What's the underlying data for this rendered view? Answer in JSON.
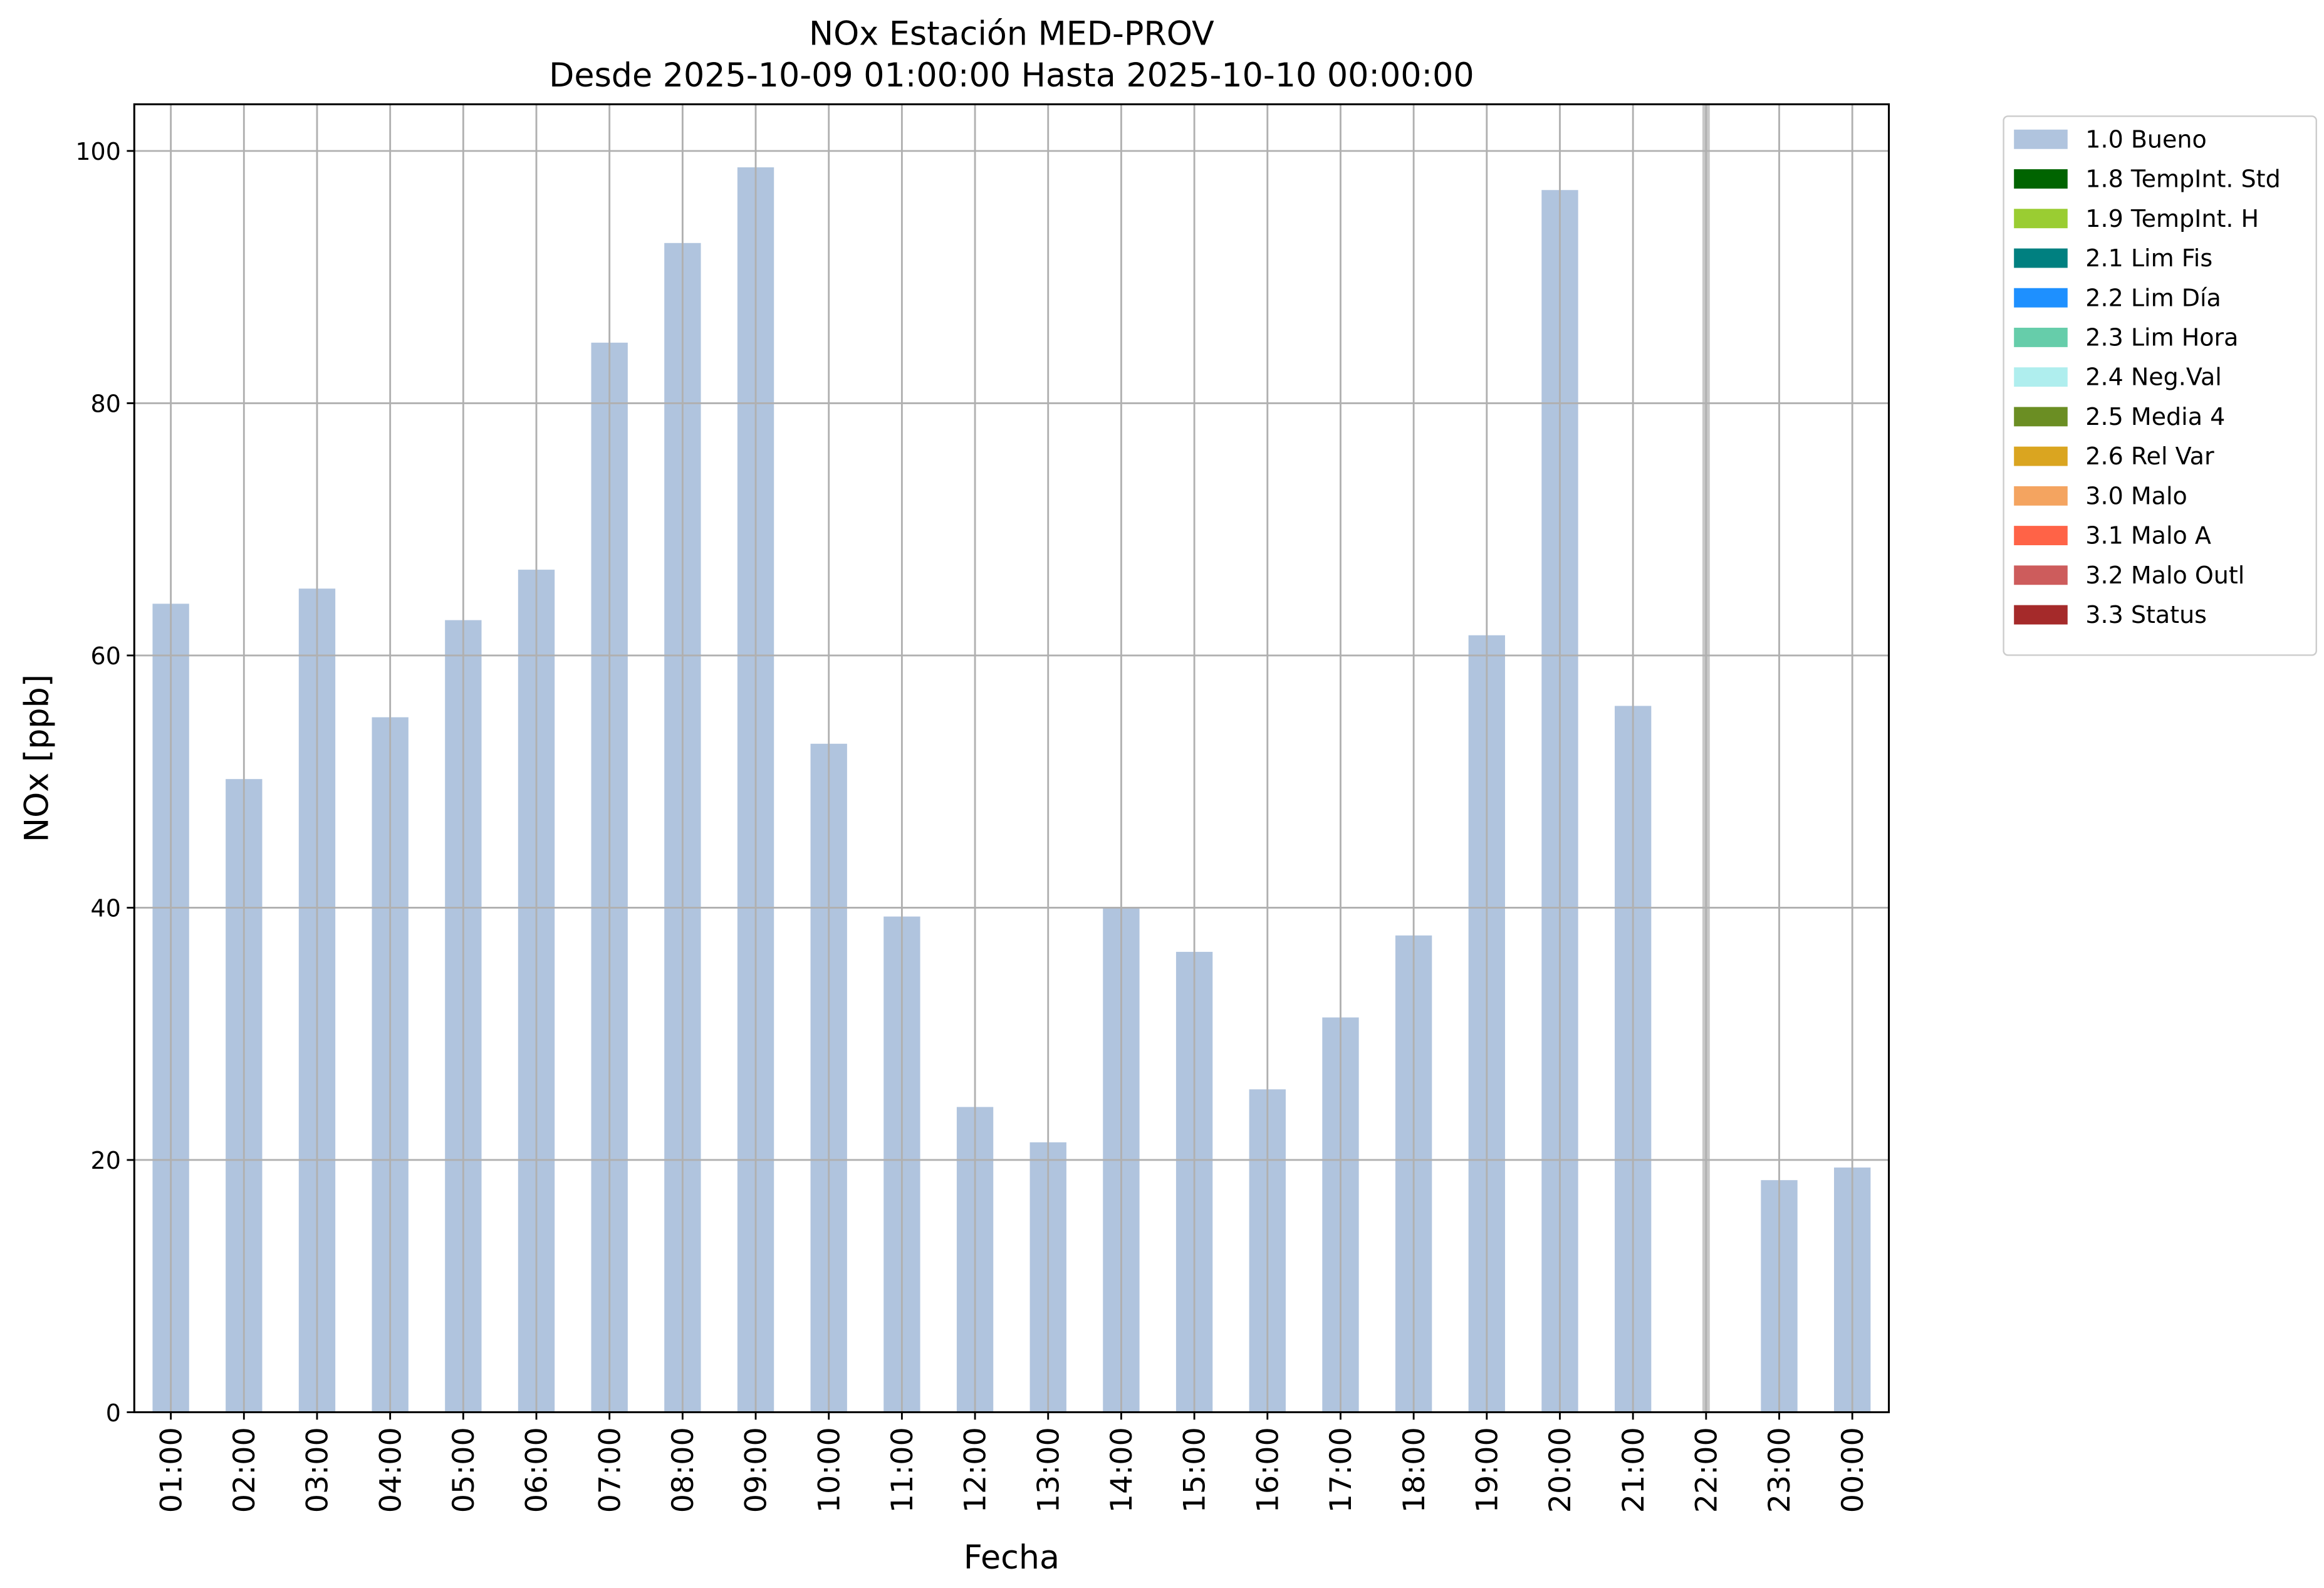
{
  "chart_data": {
    "type": "bar",
    "title": "NOx Estación MED-PROV",
    "subtitle": "Desde 2025-10-09 01:00:00 Hasta 2025-10-10 00:00:00",
    "x_label": "Fecha",
    "y_label": "NOx [ppb]",
    "categories": [
      "01:00",
      "02:00",
      "03:00",
      "04:00",
      "05:00",
      "06:00",
      "07:00",
      "08:00",
      "09:00",
      "10:00",
      "11:00",
      "12:00",
      "13:00",
      "14:00",
      "15:00",
      "16:00",
      "17:00",
      "18:00",
      "19:00",
      "20:00",
      "21:00",
      "22:00",
      "23:00",
      "00:00"
    ],
    "series": [
      {
        "name": "1.0 Bueno",
        "color": "#b0c4de",
        "values": [
          64.1,
          50.2,
          65.3,
          55.1,
          62.8,
          66.8,
          84.8,
          92.7,
          98.7,
          53.0,
          39.3,
          24.2,
          21.4,
          40.0,
          36.5,
          25.6,
          31.3,
          37.8,
          61.6,
          96.9,
          56.0,
          null,
          18.4,
          19.4
        ]
      },
      {
        "name": "1.8 TempInt. Std",
        "color": "#006400",
        "values": [
          null,
          null,
          null,
          null,
          null,
          null,
          null,
          null,
          null,
          null,
          null,
          null,
          null,
          null,
          null,
          null,
          null,
          null,
          null,
          null,
          null,
          null,
          null,
          null
        ]
      },
      {
        "name": "1.9 TempInt. H",
        "color": "#9acd32",
        "values": [
          null,
          null,
          null,
          null,
          null,
          null,
          null,
          null,
          null,
          null,
          null,
          null,
          null,
          null,
          null,
          null,
          null,
          null,
          null,
          null,
          null,
          null,
          null,
          null
        ]
      },
      {
        "name": "2.1 Lim Fis",
        "color": "#008080",
        "values": [
          null,
          null,
          null,
          null,
          null,
          null,
          null,
          null,
          null,
          null,
          null,
          null,
          null,
          null,
          null,
          null,
          null,
          null,
          null,
          null,
          null,
          null,
          null,
          null
        ]
      },
      {
        "name": "2.2 Lim Día",
        "color": "#1e90ff",
        "values": [
          null,
          null,
          null,
          null,
          null,
          null,
          null,
          null,
          null,
          null,
          null,
          null,
          null,
          null,
          null,
          null,
          null,
          null,
          null,
          null,
          null,
          null,
          null,
          null
        ]
      },
      {
        "name": "2.3 Lim Hora",
        "color": "#66cdaa",
        "values": [
          null,
          null,
          null,
          null,
          null,
          null,
          null,
          null,
          null,
          null,
          null,
          null,
          null,
          null,
          null,
          null,
          null,
          null,
          null,
          null,
          null,
          null,
          null,
          null
        ]
      },
      {
        "name": "2.4 Neg.Val",
        "color": "#afeeee",
        "values": [
          null,
          null,
          null,
          null,
          null,
          null,
          null,
          null,
          null,
          null,
          null,
          null,
          null,
          null,
          null,
          null,
          null,
          null,
          null,
          null,
          null,
          null,
          null,
          null
        ]
      },
      {
        "name": "2.5 Media 4",
        "color": "#6b8e23",
        "values": [
          null,
          null,
          null,
          null,
          null,
          null,
          null,
          null,
          null,
          null,
          null,
          null,
          null,
          null,
          null,
          null,
          null,
          null,
          null,
          null,
          null,
          null,
          null,
          null
        ]
      },
      {
        "name": "2.6 Rel Var",
        "color": "#daa520",
        "values": [
          null,
          null,
          null,
          null,
          null,
          null,
          null,
          null,
          null,
          null,
          null,
          null,
          null,
          null,
          null,
          null,
          null,
          null,
          null,
          null,
          null,
          null,
          null,
          null
        ]
      },
      {
        "name": "3.0 Malo",
        "color": "#f4a460",
        "values": [
          null,
          null,
          null,
          null,
          null,
          null,
          null,
          null,
          null,
          null,
          null,
          null,
          null,
          null,
          null,
          null,
          null,
          null,
          null,
          null,
          null,
          null,
          null,
          null
        ]
      },
      {
        "name": "3.1 Malo A",
        "color": "#ff6347",
        "values": [
          null,
          null,
          null,
          null,
          null,
          null,
          null,
          null,
          null,
          null,
          null,
          null,
          null,
          null,
          null,
          null,
          null,
          null,
          null,
          null,
          null,
          null,
          null,
          null
        ]
      },
      {
        "name": "3.2 Malo Outl",
        "color": "#cd5c5c",
        "values": [
          null,
          null,
          null,
          null,
          null,
          null,
          null,
          null,
          null,
          null,
          null,
          null,
          null,
          null,
          null,
          null,
          null,
          null,
          null,
          null,
          null,
          null,
          null,
          null
        ]
      },
      {
        "name": "3.3 Status",
        "color": "#a52a2a",
        "values": [
          null,
          null,
          null,
          null,
          null,
          null,
          null,
          null,
          null,
          null,
          null,
          null,
          null,
          null,
          null,
          null,
          null,
          null,
          null,
          null,
          null,
          null,
          null,
          null
        ]
      }
    ],
    "ylim": [
      0,
      103.7
    ],
    "yticks": [
      0,
      20,
      40,
      60,
      80,
      100
    ],
    "grid": true,
    "legend": "outside upper right"
  }
}
